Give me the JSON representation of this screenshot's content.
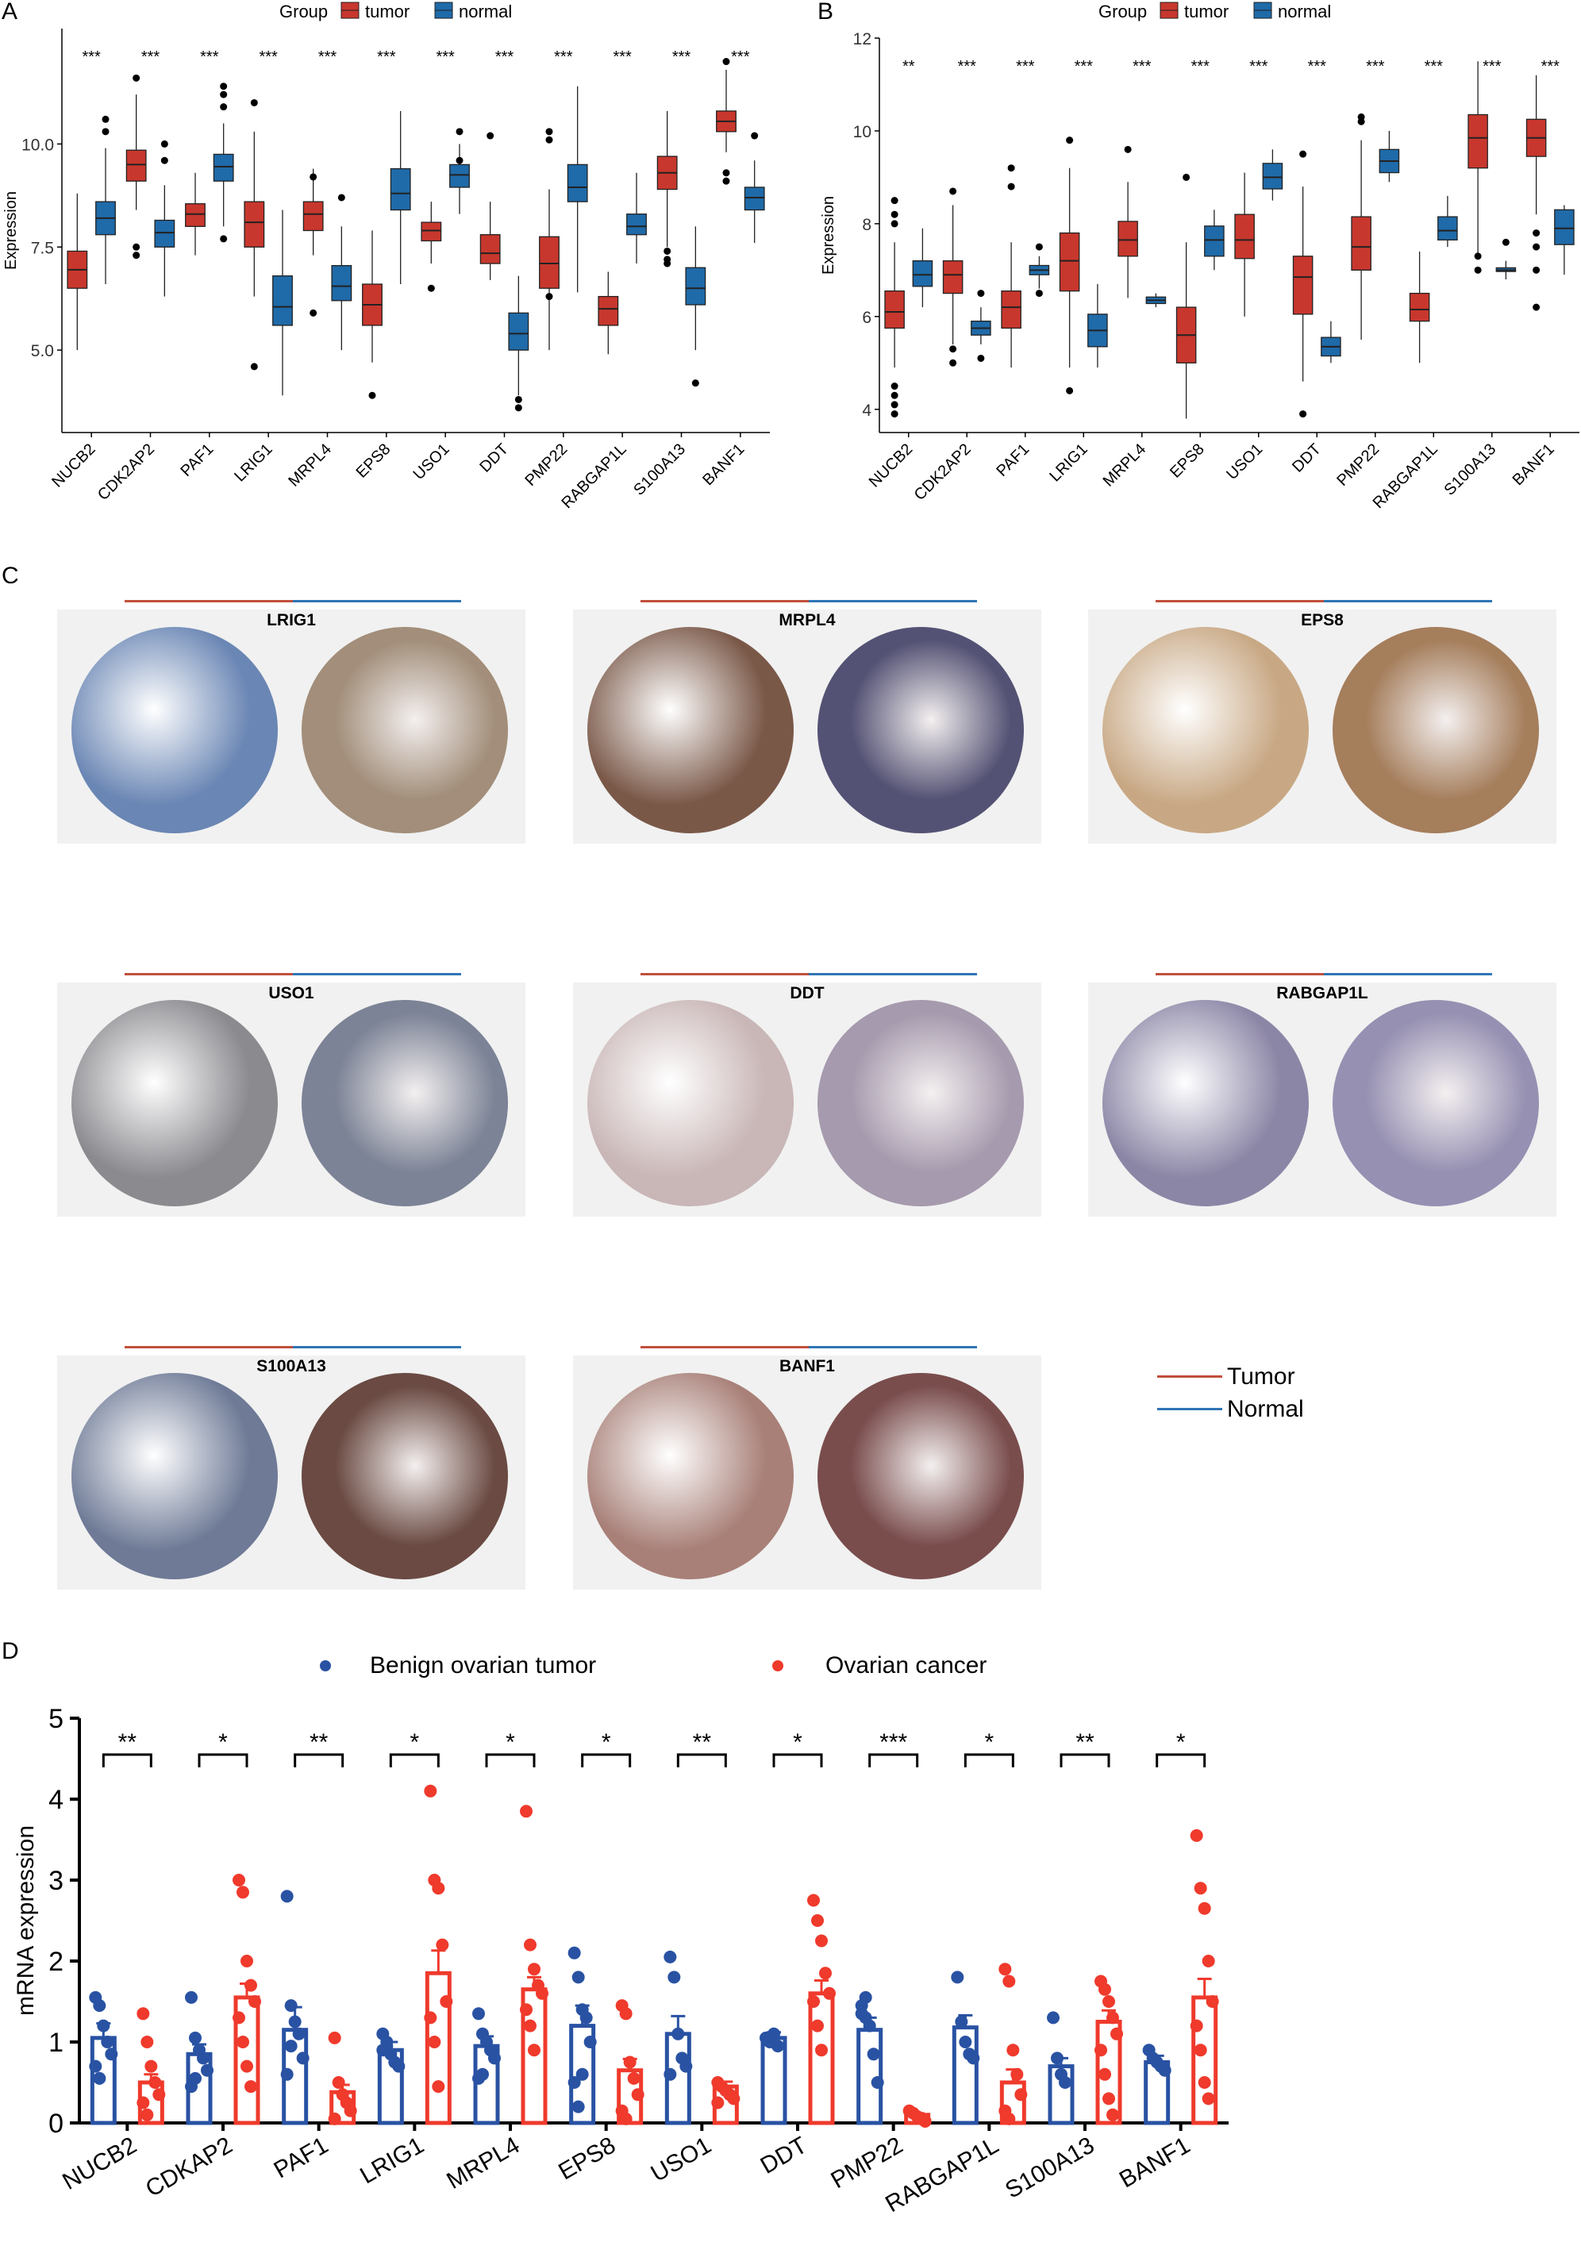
{
  "panel_labels": {
    "a": "A",
    "b": "B",
    "c": "C",
    "d": "D"
  },
  "colors": {
    "tumor": "#c8372d",
    "normal": "#1f6aa8",
    "benign_dot": "#2952a3",
    "cancer_dot": "#ef3a2c",
    "tma_tumor_line": "#c0503c",
    "tma_normal_line": "#2f75b5"
  },
  "panel_c": {
    "legend": [
      {
        "name": "Tumor",
        "color": "#c0503c"
      },
      {
        "name": "Normal",
        "color": "#2f75b5"
      }
    ],
    "cores": [
      {
        "gene": "LRIG1",
        "left_stain": "#6a86b4",
        "right_stain": "#a28e7a"
      },
      {
        "gene": "MRPL4",
        "left_stain": "#7a5848",
        "right_stain": "#545274"
      },
      {
        "gene": "EPS8",
        "left_stain": "#c8a884",
        "right_stain": "#a57e5c"
      },
      {
        "gene": "USO1",
        "left_stain": "#8a8a8f",
        "right_stain": "#7c8396"
      },
      {
        "gene": "DDT",
        "left_stain": "#c9b6b6",
        "right_stain": "#a69aae"
      },
      {
        "gene": "RABGAP1L",
        "left_stain": "#8c86a6",
        "right_stain": "#9690b2"
      },
      {
        "gene": "S100A13",
        "left_stain": "#6e7a96",
        "right_stain": "#6a4a42"
      },
      {
        "gene": "BANF1",
        "left_stain": "#a88078",
        "right_stain": "#7a4d4d"
      }
    ]
  },
  "chart_data": [
    {
      "panel": "A",
      "type": "box",
      "title": "",
      "legend_title": "Group",
      "series_names": [
        "tumor",
        "normal"
      ],
      "ylabel": "Expression",
      "ylim": [
        3.0,
        12.8
      ],
      "yticks": [
        5.0,
        7.5,
        10.0
      ],
      "ytick_labels": [
        "5.0",
        "7.5",
        "10.0"
      ],
      "significance": [
        "***",
        "***",
        "***",
        "***",
        "***",
        "***",
        "***",
        "***",
        "***",
        "***",
        "***",
        "***"
      ],
      "categories": [
        "NUCB2",
        "CDK2AP2",
        "PAF1",
        "LRIG1",
        "MRPL4",
        "EPS8",
        "USO1",
        "DDT",
        "PMP22",
        "RABGAP1L",
        "S100A13",
        "BANF1"
      ],
      "series": [
        {
          "name": "tumor",
          "boxes": [
            [
              5.0,
              6.5,
              6.95,
              7.4,
              8.8
            ],
            [
              8.4,
              9.1,
              9.5,
              9.85,
              11.2
            ],
            [
              7.3,
              8.0,
              8.3,
              8.55,
              9.3
            ],
            [
              6.3,
              7.5,
              8.1,
              8.6,
              10.3
            ],
            [
              7.3,
              7.9,
              8.3,
              8.6,
              9.4
            ],
            [
              4.7,
              5.6,
              6.1,
              6.6,
              7.9
            ],
            [
              7.1,
              7.65,
              7.9,
              8.1,
              8.6
            ],
            [
              6.7,
              7.1,
              7.35,
              7.8,
              8.6
            ],
            [
              5.0,
              6.5,
              7.1,
              7.75,
              8.9
            ],
            [
              4.9,
              5.6,
              6.0,
              6.3,
              6.9
            ],
            [
              7.5,
              8.9,
              9.3,
              9.7,
              10.8
            ],
            [
              9.8,
              10.3,
              10.55,
              10.8,
              11.8
            ]
          ],
          "outliers": [
            [],
            [
              7.5,
              7.3,
              11.6
            ],
            [],
            [
              4.6,
              11.0
            ],
            [
              5.9,
              9.2
            ],
            [
              3.9
            ],
            [
              6.5
            ],
            [
              10.2
            ],
            [
              6.3,
              10.3,
              10.1
            ],
            [],
            [
              7.2,
              7.4,
              7.1
            ],
            [
              9.3,
              9.1,
              12.0
            ]
          ]
        },
        {
          "name": "normal",
          "boxes": [
            [
              6.6,
              7.8,
              8.2,
              8.6,
              9.9
            ],
            [
              6.3,
              7.5,
              7.85,
              8.15,
              9.0
            ],
            [
              8.0,
              9.1,
              9.45,
              9.75,
              10.5
            ],
            [
              3.9,
              5.6,
              6.05,
              6.8,
              8.4
            ],
            [
              5.0,
              6.2,
              6.55,
              7.05,
              8.0
            ],
            [
              6.6,
              8.4,
              8.8,
              9.4,
              10.8
            ],
            [
              8.3,
              8.95,
              9.25,
              9.5,
              10.0
            ],
            [
              3.9,
              5.0,
              5.4,
              5.9,
              6.8
            ],
            [
              6.4,
              8.6,
              8.95,
              9.5,
              11.4
            ],
            [
              7.1,
              7.8,
              8.0,
              8.3,
              9.3
            ],
            [
              5.0,
              6.1,
              6.5,
              7.0,
              8.0
            ],
            [
              7.6,
              8.4,
              8.7,
              8.95,
              9.6
            ]
          ],
          "outliers": [
            [
              10.3,
              10.6
            ],
            [
              10.0,
              9.6
            ],
            [
              10.9,
              11.2,
              11.4,
              7.7
            ],
            [],
            [
              8.7
            ],
            [],
            [
              10.3,
              9.6
            ],
            [
              3.6,
              3.8
            ],
            [],
            [],
            [
              4.2
            ],
            [
              10.2
            ]
          ]
        }
      ]
    },
    {
      "panel": "B",
      "type": "box",
      "title": "",
      "legend_title": "Group",
      "series_names": [
        "tumor",
        "normal"
      ],
      "ylabel": "Expression",
      "ylim": [
        3.5,
        12.0
      ],
      "yticks": [
        4,
        6,
        8,
        10,
        12
      ],
      "ytick_labels": [
        "4",
        "6",
        "8",
        "10",
        "12"
      ],
      "significance": [
        "**",
        "***",
        "***",
        "***",
        "***",
        "***",
        "***",
        "***",
        "***",
        "***",
        "***",
        "***"
      ],
      "categories": [
        "NUCB2",
        "CDK2AP2",
        "PAF1",
        "LRIG1",
        "MRPL4",
        "EPS8",
        "USO1",
        "DDT",
        "PMP22",
        "RABGAP1L",
        "S100A13",
        "BANF1"
      ],
      "series": [
        {
          "name": "tumor",
          "boxes": [
            [
              4.9,
              5.75,
              6.1,
              6.55,
              7.6
            ],
            [
              5.4,
              6.5,
              6.9,
              7.2,
              8.4
            ],
            [
              4.9,
              5.75,
              6.2,
              6.55,
              7.6
            ],
            [
              4.9,
              6.55,
              7.2,
              7.8,
              9.2
            ],
            [
              6.4,
              7.3,
              7.65,
              8.05,
              8.9
            ],
            [
              3.8,
              5.0,
              5.6,
              6.2,
              7.6
            ],
            [
              6.0,
              7.25,
              7.65,
              8.2,
              9.1
            ],
            [
              4.6,
              6.05,
              6.85,
              7.3,
              8.8
            ],
            [
              5.5,
              7.0,
              7.5,
              8.15,
              9.8
            ],
            [
              5.0,
              5.9,
              6.15,
              6.5,
              7.4
            ],
            [
              7.3,
              9.2,
              9.85,
              10.35,
              11.5
            ],
            [
              8.2,
              9.45,
              9.85,
              10.25,
              11.2
            ]
          ],
          "outliers": [
            [
              3.9,
              4.1,
              4.3,
              4.5,
              8.0,
              8.2,
              8.5
            ],
            [
              5.0,
              5.3,
              8.7
            ],
            [
              8.8,
              9.2
            ],
            [
              4.4,
              9.8
            ],
            [
              9.6
            ],
            [
              9.0
            ],
            [],
            [
              9.5,
              3.9
            ],
            [
              10.2,
              10.3
            ],
            [],
            [
              7.0,
              7.3
            ],
            [
              6.2,
              7.0,
              7.5,
              7.8
            ]
          ]
        },
        {
          "name": "normal",
          "boxes": [
            [
              6.2,
              6.65,
              6.9,
              7.2,
              7.9
            ],
            [
              5.4,
              5.6,
              5.75,
              5.9,
              6.2
            ],
            [
              6.6,
              6.9,
              7.0,
              7.1,
              7.3
            ],
            [
              4.9,
              5.35,
              5.7,
              6.05,
              6.7
            ],
            [
              6.2,
              6.28,
              6.35,
              6.42,
              6.5
            ],
            [
              7.0,
              7.3,
              7.65,
              7.95,
              8.3
            ],
            [
              8.5,
              8.75,
              9.0,
              9.3,
              9.6
            ],
            [
              5.0,
              5.15,
              5.35,
              5.55,
              5.9
            ],
            [
              8.9,
              9.1,
              9.35,
              9.6,
              10.0
            ],
            [
              7.5,
              7.65,
              7.85,
              8.15,
              8.6
            ],
            [
              6.8,
              6.97,
              7.0,
              7.05,
              7.2
            ],
            [
              6.9,
              7.55,
              7.9,
              8.3,
              8.4
            ]
          ],
          "outliers": [
            [],
            [
              6.5,
              5.1
            ],
            [
              7.5,
              6.5
            ],
            [],
            [],
            [],
            [],
            [],
            [],
            [],
            [
              7.6
            ],
            []
          ]
        }
      ]
    },
    {
      "panel": "D",
      "type": "bar",
      "title": "",
      "ylabel": "mRNA expression",
      "ylim": [
        0,
        5
      ],
      "yticks": [
        0,
        1,
        2,
        3,
        4,
        5
      ],
      "ytick_labels": [
        "0",
        "1",
        "2",
        "3",
        "4",
        "5"
      ],
      "categories": [
        "NUCB2",
        "CDKAP2",
        "PAF1",
        "LRIG1",
        "MRPL4",
        "EPS8",
        "USO1",
        "DDT",
        "PMP22",
        "RABGAP1L",
        "S100A13",
        "BANF1"
      ],
      "significance": [
        "**",
        "*",
        "**",
        "*",
        "*",
        "*",
        "**",
        "*",
        "***",
        "*",
        "**",
        "*"
      ],
      "series": [
        {
          "name": "Benign ovarian tumor",
          "values": [
            1.05,
            0.85,
            1.15,
            0.9,
            0.95,
            1.2,
            1.1,
            1.05,
            1.15,
            1.18,
            0.7,
            0.75
          ],
          "errors": [
            0.18,
            0.12,
            0.28,
            0.1,
            0.12,
            0.25,
            0.22,
            0.07,
            0.15,
            0.15,
            0.1,
            0.08
          ],
          "points": [
            [
              1.55,
              1.45,
              1.2,
              1.0,
              0.85,
              0.7,
              0.55
            ],
            [
              1.55,
              1.05,
              0.9,
              0.8,
              0.65,
              0.45,
              0.55
            ],
            [
              2.8,
              1.45,
              1.25,
              1.1,
              0.8,
              0.6,
              0.95
            ],
            [
              1.1,
              0.95,
              0.85,
              0.75,
              0.7,
              0.9,
              1.0
            ],
            [
              1.35,
              1.1,
              1.0,
              0.9,
              0.8,
              0.55,
              0.6
            ],
            [
              2.1,
              1.8,
              1.4,
              1.3,
              1.0,
              0.5,
              0.2,
              0.6
            ],
            [
              2.05,
              1.8,
              1.1,
              0.8,
              0.7,
              0.6
            ],
            [
              1.05,
              1.0,
              1.1,
              0.95
            ],
            [
              1.45,
              1.3,
              1.2,
              0.85,
              0.5,
              1.35,
              1.55
            ],
            [
              1.8,
              1.25,
              1.0,
              0.85,
              0.8
            ],
            [
              1.3,
              0.8,
              0.6,
              0.5
            ],
            [
              0.9,
              0.8,
              0.75,
              0.7,
              0.65
            ]
          ]
        },
        {
          "name": "Ovarian cancer",
          "values": [
            0.5,
            1.55,
            0.38,
            1.85,
            1.65,
            0.65,
            0.45,
            1.6,
            0.1,
            0.5,
            1.25,
            1.55
          ],
          "errors": [
            0.1,
            0.17,
            0.09,
            0.28,
            0.15,
            0.14,
            0.06,
            0.16,
            0.02,
            0.16,
            0.14,
            0.23
          ],
          "points": [
            [
              1.35,
              1.0,
              0.7,
              0.5,
              0.35,
              0.25,
              0.1
            ],
            [
              3.0,
              2.85,
              2.0,
              1.7,
              1.5,
              1.3,
              1.0,
              0.7,
              0.45
            ],
            [
              1.05,
              0.5,
              0.35,
              0.25,
              0.15,
              0.05
            ],
            [
              4.1,
              3.0,
              2.9,
              2.2,
              1.5,
              1.3,
              1.0,
              0.45
            ],
            [
              3.85,
              2.2,
              1.9,
              1.7,
              1.6,
              1.4,
              1.2,
              0.9
            ],
            [
              1.45,
              1.35,
              0.75,
              0.55,
              0.35,
              0.15,
              0.05
            ],
            [
              0.5,
              0.45,
              0.4,
              0.35,
              0.3,
              0.25
            ],
            [
              2.75,
              2.5,
              2.25,
              1.85,
              1.6,
              1.5,
              1.2,
              0.9
            ],
            [
              0.15,
              0.12,
              0.08,
              0.05,
              0.02
            ],
            [
              1.9,
              1.75,
              0.9,
              0.6,
              0.35,
              0.15,
              0.05
            ],
            [
              1.75,
              1.65,
              1.5,
              1.3,
              1.1,
              0.9,
              0.6,
              0.3,
              0.1
            ],
            [
              3.55,
              2.9,
              2.65,
              2.0,
              1.5,
              1.2,
              0.9,
              0.5,
              0.3
            ]
          ]
        }
      ]
    }
  ]
}
